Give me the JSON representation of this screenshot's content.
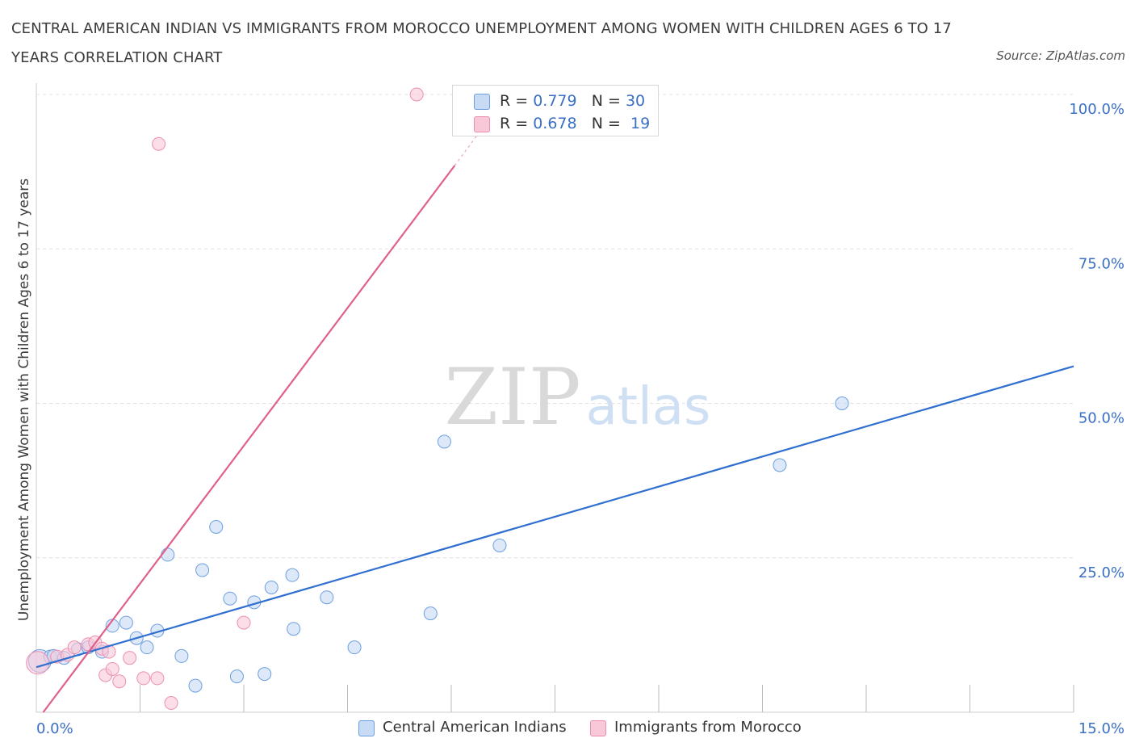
{
  "chart_data": {
    "type": "scatter",
    "title": "CENTRAL AMERICAN INDIAN VS IMMIGRANTS FROM MOROCCO UNEMPLOYMENT AMONG WOMEN WITH CHILDREN AGES 6 TO 17 YEARS CORRELATION CHART",
    "source": "Source: ZipAtlas.com",
    "ylabel": "Unemployment Among Women with Children Ages 6 to 17 years",
    "xlim": [
      0,
      15
    ],
    "ylim": [
      0,
      100
    ],
    "x_tick_labels": {
      "left": "0.0%",
      "right": "15.0%"
    },
    "y_ticks": [
      {
        "value": 25,
        "label": "25.0%"
      },
      {
        "value": 50,
        "label": "50.0%"
      },
      {
        "value": 75,
        "label": "75.0%"
      },
      {
        "value": 100,
        "label": "100.0%"
      }
    ],
    "grid": true,
    "watermark": {
      "zip": "ZIP",
      "atlas": "atlas"
    },
    "series": [
      {
        "name": "Central American Indians",
        "color": "#6d9fe0",
        "fill": "#c7dbf5",
        "line_color": "#2f6fcf",
        "R": "0.779",
        "N": "30",
        "trend": {
          "x": [
            0.0,
            15.0
          ],
          "y": [
            7.3,
            56.0
          ]
        },
        "points": [
          {
            "x": 0.05,
            "y": 8.3,
            "big": true
          },
          {
            "x": 0.2,
            "y": 9.0
          },
          {
            "x": 0.25,
            "y": 9.1
          },
          {
            "x": 0.4,
            "y": 8.8
          },
          {
            "x": 0.6,
            "y": 10.2
          },
          {
            "x": 0.75,
            "y": 10.5
          },
          {
            "x": 0.95,
            "y": 9.8
          },
          {
            "x": 1.1,
            "y": 14.0
          },
          {
            "x": 1.3,
            "y": 14.5
          },
          {
            "x": 1.45,
            "y": 12.0
          },
          {
            "x": 1.6,
            "y": 10.5
          },
          {
            "x": 1.75,
            "y": 13.2
          },
          {
            "x": 1.9,
            "y": 25.5
          },
          {
            "x": 2.1,
            "y": 9.1
          },
          {
            "x": 2.3,
            "y": 4.3
          },
          {
            "x": 2.4,
            "y": 23.0
          },
          {
            "x": 2.6,
            "y": 30.0
          },
          {
            "x": 2.8,
            "y": 18.4
          },
          {
            "x": 2.9,
            "y": 5.8
          },
          {
            "x": 3.15,
            "y": 17.8
          },
          {
            "x": 3.3,
            "y": 6.2
          },
          {
            "x": 3.4,
            "y": 20.2
          },
          {
            "x": 3.7,
            "y": 22.2
          },
          {
            "x": 3.72,
            "y": 13.5
          },
          {
            "x": 4.2,
            "y": 18.6
          },
          {
            "x": 4.6,
            "y": 10.5
          },
          {
            "x": 5.7,
            "y": 16.0
          },
          {
            "x": 5.9,
            "y": 43.8
          },
          {
            "x": 6.7,
            "y": 27.0
          },
          {
            "x": 10.75,
            "y": 40.0
          },
          {
            "x": 11.65,
            "y": 50.0
          }
        ]
      },
      {
        "name": "Immigrants from Morocco",
        "color": "#ec8fae",
        "fill": "#f8c8d8",
        "line_color": "#e0608c",
        "R": "0.678",
        "N": "19",
        "trend": {
          "x": [
            0.1,
            6.05
          ],
          "y": [
            0.0,
            88.5
          ]
        },
        "trend_dashed": {
          "x": [
            6.05,
            6.5
          ],
          "y": [
            88.5,
            95.3
          ]
        },
        "points": [
          {
            "x": 0.02,
            "y": 8.0,
            "big": true
          },
          {
            "x": 0.3,
            "y": 9.0
          },
          {
            "x": 0.45,
            "y": 9.3
          },
          {
            "x": 0.55,
            "y": 10.5
          },
          {
            "x": 0.75,
            "y": 11.0
          },
          {
            "x": 0.85,
            "y": 11.3
          },
          {
            "x": 0.95,
            "y": 10.3
          },
          {
            "x": 1.0,
            "y": 6.0
          },
          {
            "x": 1.05,
            "y": 9.8
          },
          {
            "x": 1.1,
            "y": 7.0
          },
          {
            "x": 1.2,
            "y": 5.0
          },
          {
            "x": 1.35,
            "y": 8.8
          },
          {
            "x": 1.55,
            "y": 5.5
          },
          {
            "x": 1.75,
            "y": 5.5
          },
          {
            "x": 1.77,
            "y": 92.0
          },
          {
            "x": 1.95,
            "y": 1.5
          },
          {
            "x": 3.0,
            "y": 14.5
          },
          {
            "x": 5.5,
            "y": 100.0
          }
        ]
      }
    ]
  }
}
